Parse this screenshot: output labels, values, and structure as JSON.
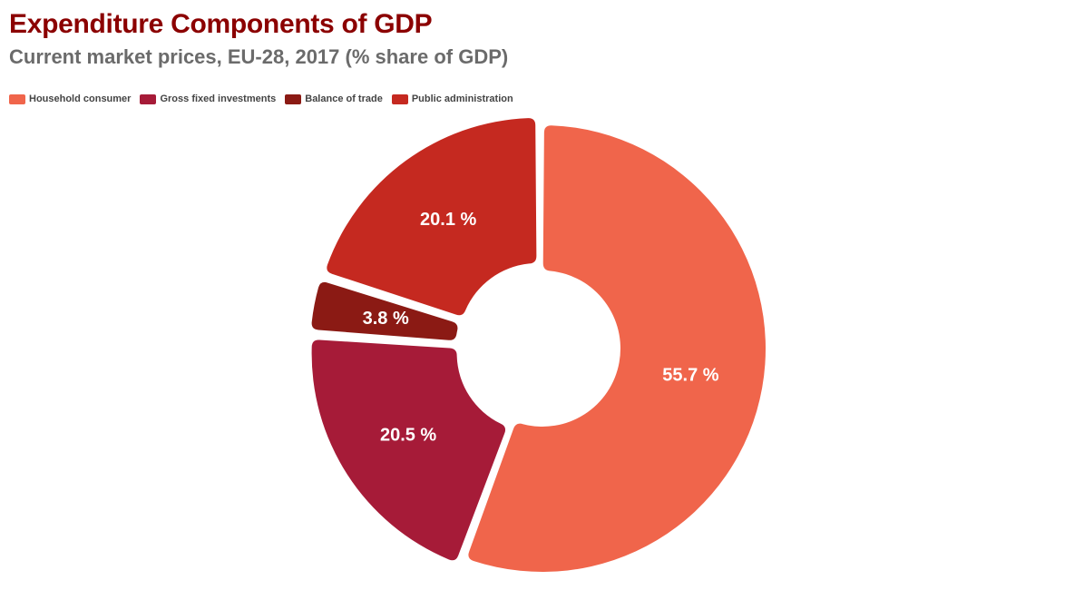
{
  "chart_data": {
    "type": "pie",
    "title": "Expenditure Components of GDP",
    "subtitle": "Current market prices, EU-28, 2017 (% share of GDP)",
    "legend_position": "top-left",
    "donut": true,
    "categories": [
      "Household consumer",
      "Gross fixed investments",
      "Balance of trade",
      "Public administration"
    ],
    "values": [
      55.7,
      20.5,
      3.8,
      20.1
    ],
    "labels": [
      "55.7 %",
      "20.5 %",
      "3.8 %",
      "20.1 %"
    ],
    "colors": [
      "#f0654b",
      "#a61b38",
      "#8b1a14",
      "#c52920"
    ]
  }
}
